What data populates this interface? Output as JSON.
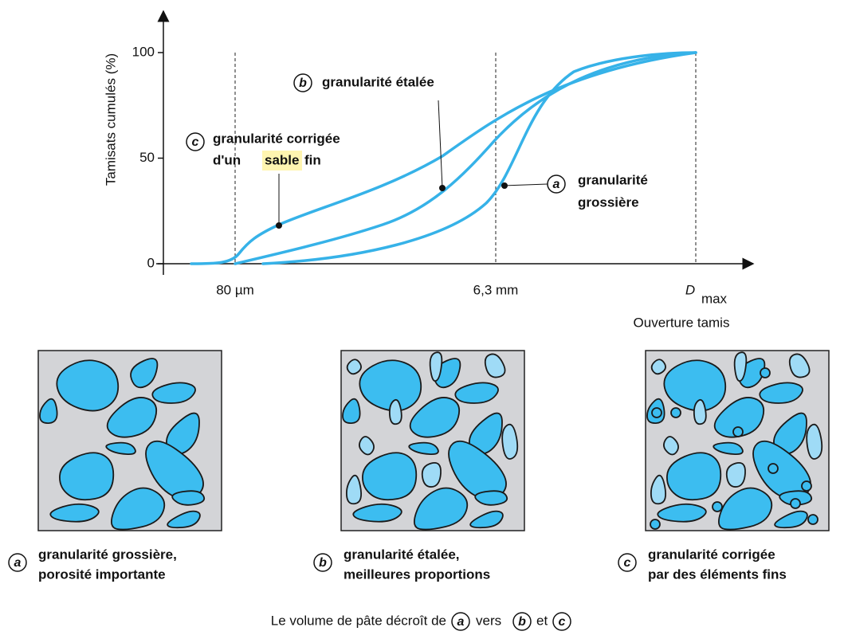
{
  "chart": {
    "y_axis_label": "Tamisats cumulés (%)",
    "ylim": [
      0,
      100
    ],
    "yticks": [
      0,
      50,
      100
    ],
    "x_tick_labels": [
      "80 µm",
      "6,3 mm"
    ],
    "x_end_label": {
      "main": "D",
      "subscript": "max"
    },
    "x_axis_label": "Ouverture tamis",
    "curve_labels": {
      "b": {
        "letter": "b",
        "text": "granularité étalée"
      },
      "c": {
        "letter": "c",
        "line1": "granularité corrigée",
        "line2_before": "d'un",
        "line2_highlight": "sable",
        "line2_after": "fin"
      },
      "a": {
        "letter": "a",
        "line1": "granularité",
        "line2": "grossière"
      }
    }
  },
  "panels": [
    {
      "letter": "a",
      "caption": [
        "granularité grossière,",
        "porosité importante"
      ]
    },
    {
      "letter": "b",
      "caption": [
        "granularité étalée,",
        "meilleures proportions"
      ]
    },
    {
      "letter": "c",
      "caption": [
        "granularité corrigée",
        "par des éléments fins"
      ]
    }
  ],
  "footer": {
    "before": "Le volume de pâte décroît de",
    "letter1": "a",
    "middle": "vers",
    "letter2": "b",
    "joiner": "et",
    "letter3": "c"
  }
}
